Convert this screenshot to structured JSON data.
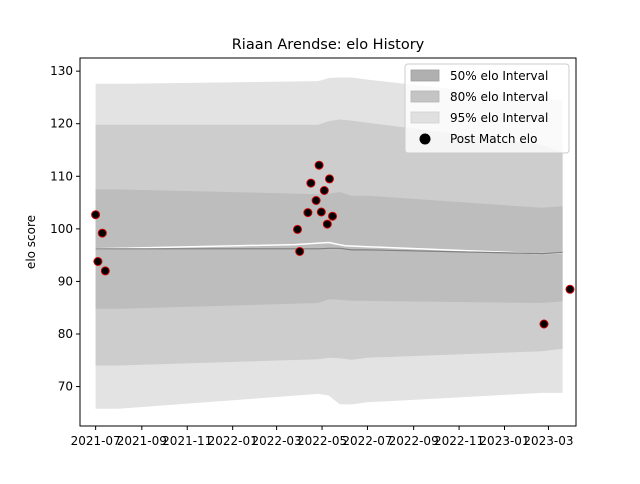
{
  "chart_data": {
    "type": "line",
    "title": "Riaan Arendse: elo History",
    "xlabel": "",
    "ylabel": "elo score",
    "xlim": [
      "2021-06-10",
      "2023-04-07"
    ],
    "ylim": [
      62.5,
      132.5
    ],
    "x_ticks": [
      "2021-07",
      "2021-09",
      "2021-11",
      "2022-01",
      "2022-03",
      "2022-05",
      "2022-07",
      "2022-09",
      "2022-11",
      "2023-01",
      "2023-03"
    ],
    "y_ticks": [
      70,
      80,
      90,
      100,
      110,
      120,
      130
    ],
    "grid": false,
    "legend": {
      "position": "top-right",
      "entries": [
        "50% elo Interval",
        "80% elo Interval",
        "95% elo Interval",
        "Post Match elo"
      ]
    },
    "colors": {
      "band_95": "#e3e3e3",
      "band_80": "#cdcdcd",
      "band_50": "#bdbdbd",
      "mean_line": "#808080",
      "post_line": "#ffffff",
      "point_fill": "#000000",
      "point_edge": "#cc0000"
    },
    "bands": {
      "dates": [
        "2021-07-01",
        "2021-08-01",
        "2022-04-26",
        "2022-05-10",
        "2022-05-25",
        "2022-06-10",
        "2022-07-01",
        "2023-02-20",
        "2023-03-20"
      ],
      "mean": [
        96.2,
        96.2,
        96.2,
        96.3,
        96.3,
        96.0,
        96.0,
        95.3,
        95.5
      ],
      "lo50": [
        84.8,
        84.8,
        85.9,
        86.6,
        86.5,
        86.3,
        86.3,
        85.9,
        86.2
      ],
      "hi50": [
        107.5,
        107.5,
        106.6,
        106.7,
        107.0,
        106.3,
        106.3,
        104.0,
        104.3
      ],
      "lo80": [
        74.0,
        74.0,
        75.2,
        75.5,
        75.4,
        75.1,
        75.5,
        76.7,
        77.2
      ],
      "hi80": [
        119.8,
        119.8,
        119.8,
        120.5,
        120.8,
        120.6,
        120.2,
        116.0,
        114.5
      ],
      "lo95": [
        65.8,
        65.8,
        68.6,
        68.3,
        66.6,
        66.6,
        67.0,
        68.8,
        68.8
      ],
      "hi95": [
        127.6,
        127.6,
        128.1,
        128.7,
        128.8,
        128.8,
        128.4,
        124.7,
        124.4
      ]
    },
    "post_match_line": {
      "dates": [
        "2021-07-01",
        "2022-03-25",
        "2022-05-10",
        "2022-06-01",
        "2022-07-01",
        "2023-02-15",
        "2023-03-20"
      ],
      "values": [
        96.2,
        97.0,
        97.4,
        96.8,
        96.6,
        95.3,
        95.4
      ]
    },
    "series": [
      {
        "name": "Post Match elo",
        "dates": [
          "2021-07-01",
          "2021-07-04",
          "2021-07-10",
          "2021-07-14",
          "2022-03-29",
          "2022-04-01",
          "2022-04-12",
          "2022-04-16",
          "2022-04-23",
          "2022-04-27",
          "2022-04-30",
          "2022-05-04",
          "2022-05-08",
          "2022-05-11",
          "2022-05-15",
          "2023-02-23",
          "2023-03-30"
        ],
        "values": [
          102.7,
          93.8,
          99.2,
          92.0,
          99.9,
          95.7,
          103.1,
          108.7,
          105.4,
          112.1,
          103.2,
          107.3,
          100.9,
          109.5,
          102.4,
          81.9,
          88.5
        ]
      }
    ]
  }
}
